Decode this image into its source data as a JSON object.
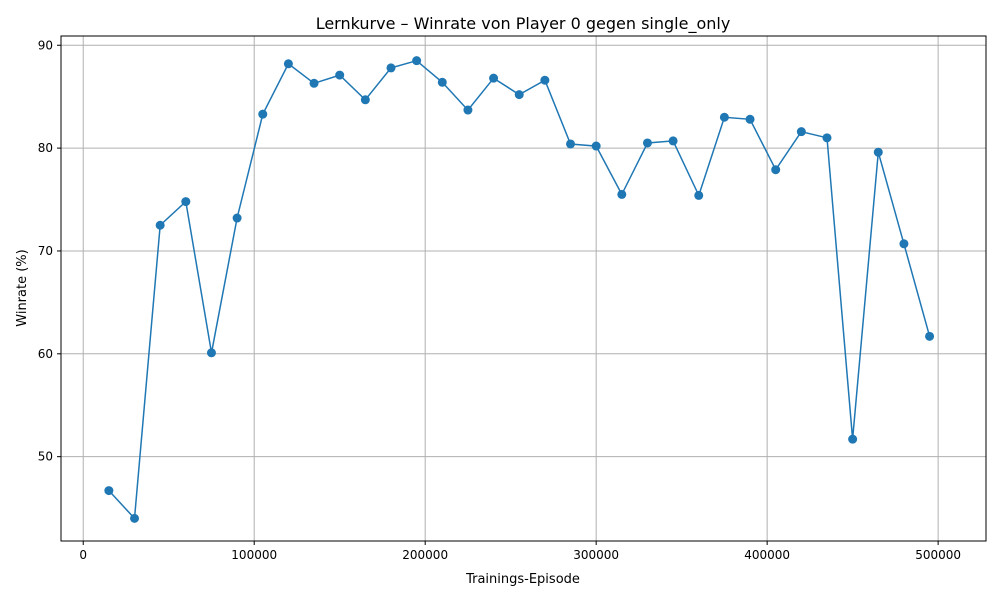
{
  "chart_data": {
    "type": "line",
    "title": "Lernkurve – Winrate von Player 0 gegen single_only",
    "xlabel": "Trainings-Episode",
    "ylabel": "Winrate (%)",
    "xlim": [
      -13000,
      528000
    ],
    "ylim": [
      41.8,
      90.9
    ],
    "xticks": [
      0,
      100000,
      200000,
      300000,
      400000,
      500000
    ],
    "xtick_labels": [
      "0",
      "100000",
      "200000",
      "300000",
      "400000",
      "500000"
    ],
    "yticks": [
      50,
      60,
      70,
      80,
      90
    ],
    "ytick_labels": [
      "50",
      "60",
      "70",
      "80",
      "90"
    ],
    "grid": true,
    "legend": false,
    "color": "#1f77b4",
    "marker": "circle",
    "x": [
      15000,
      30000,
      45000,
      60000,
      75000,
      90000,
      105000,
      120000,
      135000,
      150000,
      165000,
      180000,
      195000,
      210000,
      225000,
      240000,
      255000,
      270000,
      285000,
      300000,
      315000,
      330000,
      345000,
      360000,
      375000,
      390000,
      405000,
      420000,
      435000,
      450000,
      465000,
      480000,
      495000
    ],
    "y": [
      46.7,
      44.0,
      72.5,
      74.8,
      60.1,
      73.2,
      83.3,
      88.2,
      86.3,
      87.1,
      84.7,
      87.8,
      88.5,
      86.4,
      83.7,
      86.8,
      85.2,
      86.6,
      80.4,
      80.2,
      75.5,
      80.5,
      80.7,
      75.4,
      83.0,
      82.8,
      77.9,
      81.6,
      81.0,
      51.7,
      79.6,
      70.7,
      61.7
    ]
  }
}
